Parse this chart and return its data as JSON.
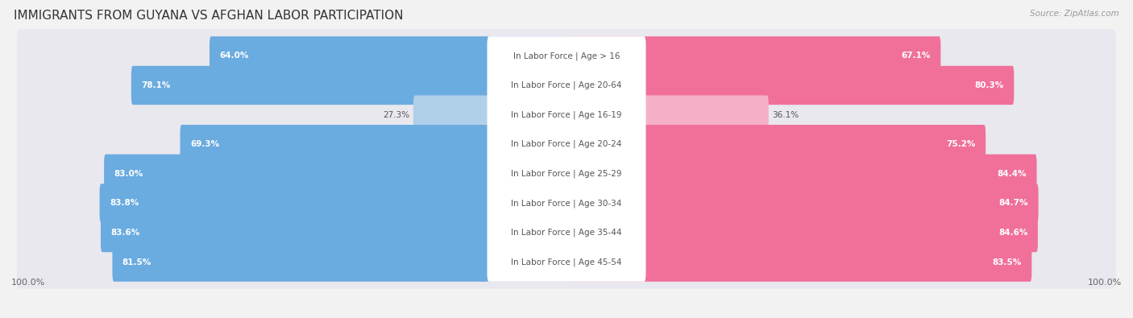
{
  "title": "IMMIGRANTS FROM GUYANA VS AFGHAN LABOR PARTICIPATION",
  "source": "Source: ZipAtlas.com",
  "categories": [
    "In Labor Force | Age > 16",
    "In Labor Force | Age 20-64",
    "In Labor Force | Age 16-19",
    "In Labor Force | Age 20-24",
    "In Labor Force | Age 25-29",
    "In Labor Force | Age 30-34",
    "In Labor Force | Age 35-44",
    "In Labor Force | Age 45-54"
  ],
  "guyana_values": [
    64.0,
    78.1,
    27.3,
    69.3,
    83.0,
    83.8,
    83.6,
    81.5
  ],
  "afghan_values": [
    67.1,
    80.3,
    36.1,
    75.2,
    84.4,
    84.7,
    84.6,
    83.5
  ],
  "guyana_color": "#6aabe0",
  "guyana_color_light": "#b0cfe8",
  "afghan_color": "#f0709a",
  "afghan_color_light": "#f5b0c8",
  "row_bg_color": "#e8e8ee",
  "background_color": "#f2f2f2",
  "title_fontsize": 11,
  "label_fontsize": 7.5,
  "value_fontsize": 7.5,
  "legend_fontsize": 8.5,
  "source_fontsize": 7.5,
  "bottom_label": "100.0%"
}
